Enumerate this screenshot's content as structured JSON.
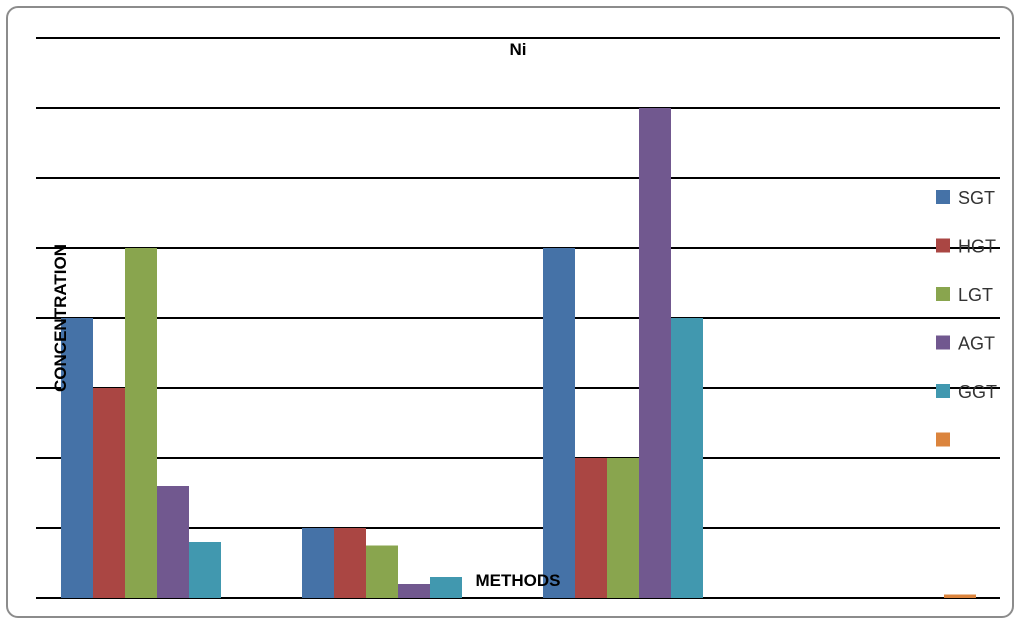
{
  "chart_data": {
    "type": "bar",
    "title": "Ni",
    "xlabel": "METHODS",
    "ylabel": "CONCENTRATION",
    "categories": [
      "",
      "",
      "",
      ""
    ],
    "ylim": [
      0,
      8
    ],
    "grid": true,
    "legend_position": "right",
    "series": [
      {
        "name": "SGT",
        "color": "#4572A7",
        "values": [
          4,
          1,
          5,
          0
        ]
      },
      {
        "name": "HGT",
        "color": "#AA4643",
        "values": [
          3,
          1,
          2,
          0
        ]
      },
      {
        "name": "LGT",
        "color": "#89A54E",
        "values": [
          5,
          0.75,
          2,
          0
        ]
      },
      {
        "name": "AGT",
        "color": "#71588F",
        "values": [
          1.6,
          0.2,
          7,
          0
        ]
      },
      {
        "name": "GGT",
        "color": "#4198AF",
        "values": [
          0.8,
          0.3,
          4,
          0
        ]
      },
      {
        "name": "",
        "color": "#DB843D",
        "values": [
          0,
          0,
          0,
          0.05
        ]
      }
    ]
  }
}
